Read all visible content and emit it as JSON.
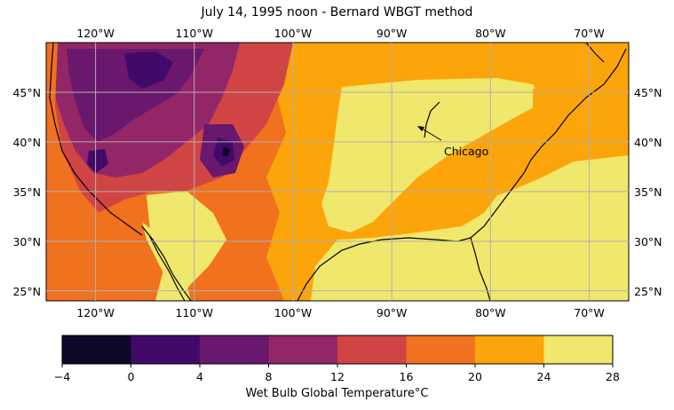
{
  "title": "July 14, 1995 noon - Bernard WBGT method",
  "map": {
    "lon_range": [
      -125,
      -66
    ],
    "lat_range": [
      24,
      50
    ],
    "lon_ticks": [
      "120°W",
      "110°W",
      "100°W",
      "90°W",
      "80°W",
      "70°W"
    ],
    "lat_ticks": [
      "45°N",
      "40°N",
      "35°N",
      "30°N",
      "25°N"
    ],
    "annotation": {
      "label": "Chicago",
      "lon": -87.6,
      "lat": 41.9
    }
  },
  "colorbar": {
    "label": "Wet Bulb Global Temperature°C",
    "ticks": [
      "−4",
      "0",
      "4",
      "8",
      "12",
      "16",
      "20",
      "24",
      "28"
    ],
    "colors": [
      "#0d0829",
      "#420a68",
      "#6a176e",
      "#932667",
      "#d04544",
      "#f0711e",
      "#fca50a",
      "#f0e76d"
    ]
  },
  "chart_data": {
    "type": "heatmap",
    "title": "July 14, 1995 noon - Bernard WBGT method",
    "levels": [
      -4,
      0,
      4,
      8,
      12,
      16,
      20,
      24,
      28
    ],
    "colorbar_label": "Wet Bulb Global Temperature°C",
    "xlim": [
      -125,
      -66
    ],
    "ylim": [
      24,
      50
    ]
  }
}
